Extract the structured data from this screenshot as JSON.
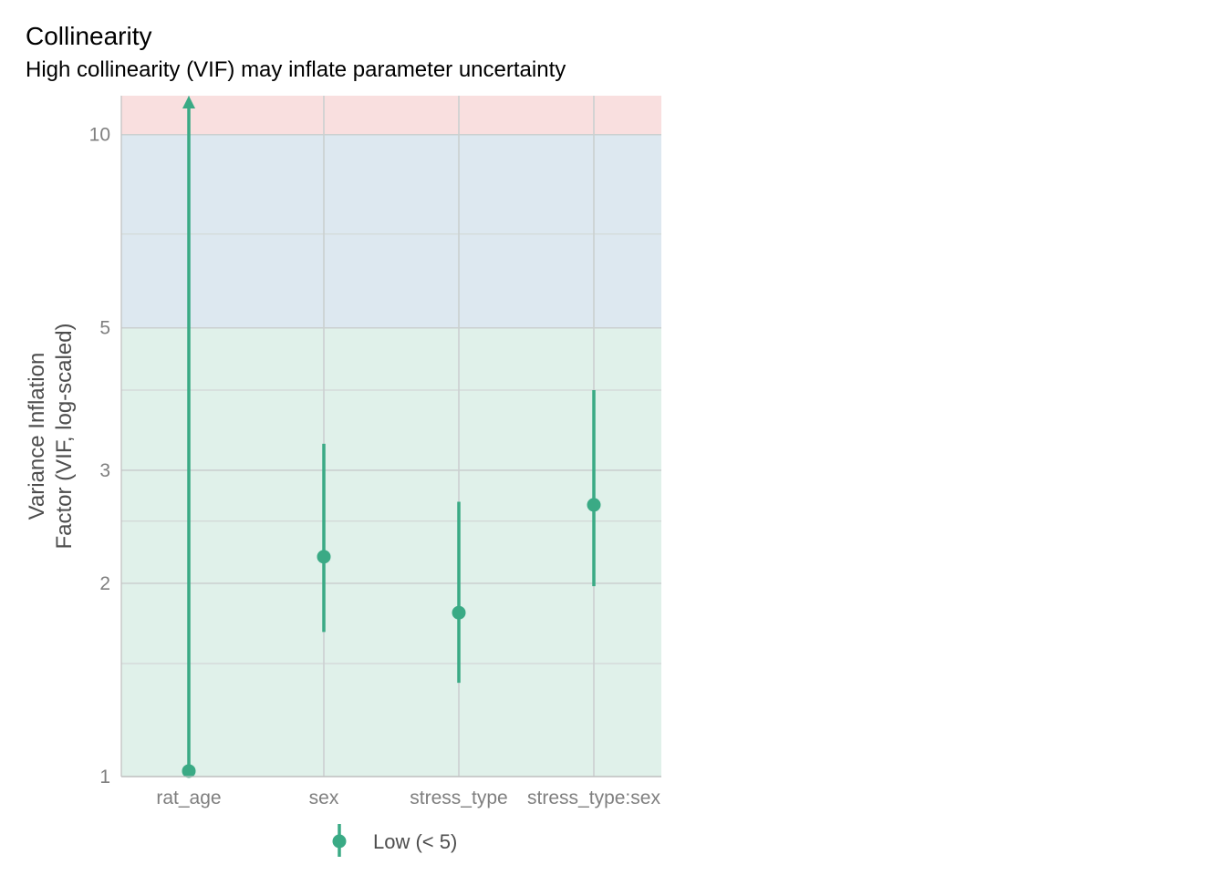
{
  "chart_data": {
    "type": "scatter",
    "title": "Collinearity",
    "subtitle": "High collinearity (VIF) may inflate parameter uncertainty",
    "xlabel": "",
    "ylabel": [
      "Variance Inflation",
      "Factor (VIF, log-scaled)"
    ],
    "yscale": "log",
    "ylim": [
      1,
      11.5
    ],
    "yticks": [
      1,
      2,
      3,
      5,
      10
    ],
    "categories": [
      "rat_age",
      "sex",
      "stress_type",
      "stress_type:sex"
    ],
    "series": [
      {
        "name": "Low (< 5)",
        "color": "#3aaa85",
        "vif": [
          1.02,
          2.2,
          1.8,
          2.65
        ],
        "ci_low": [
          1.0,
          1.68,
          1.4,
          1.98
        ],
        "ci_high": [
          11.5,
          3.3,
          2.68,
          4.0
        ],
        "ci_high_truncated": [
          true,
          false,
          false,
          false
        ]
      }
    ],
    "bands": [
      {
        "from": 1,
        "to": 5,
        "color": "#e0f1ea",
        "level": "low"
      },
      {
        "from": 5,
        "to": 10,
        "color": "#dde8f0",
        "level": "moderate"
      },
      {
        "from": 10,
        "to": 11.5,
        "color": "#f9dfdf",
        "level": "high"
      }
    ],
    "grid": true,
    "legend_position": "bottom"
  }
}
